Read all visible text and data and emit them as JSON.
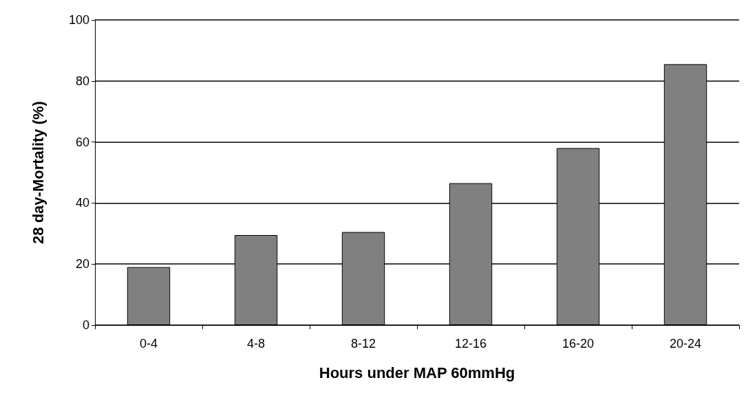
{
  "chart_data": {
    "type": "bar",
    "xlabel": "Hours under MAP 60mmHg",
    "ylabel": "28 day-Mortality (%)",
    "categories": [
      "0-4",
      "4-8",
      "8-12",
      "12-16",
      "16-20",
      "20-24"
    ],
    "values": [
      19,
      29.5,
      30.5,
      46.5,
      58,
      85.5
    ],
    "color": "#808080",
    "ylim": [
      0,
      100
    ],
    "yticks": [
      0,
      20,
      40,
      60,
      80,
      100
    ],
    "grid": "y"
  }
}
